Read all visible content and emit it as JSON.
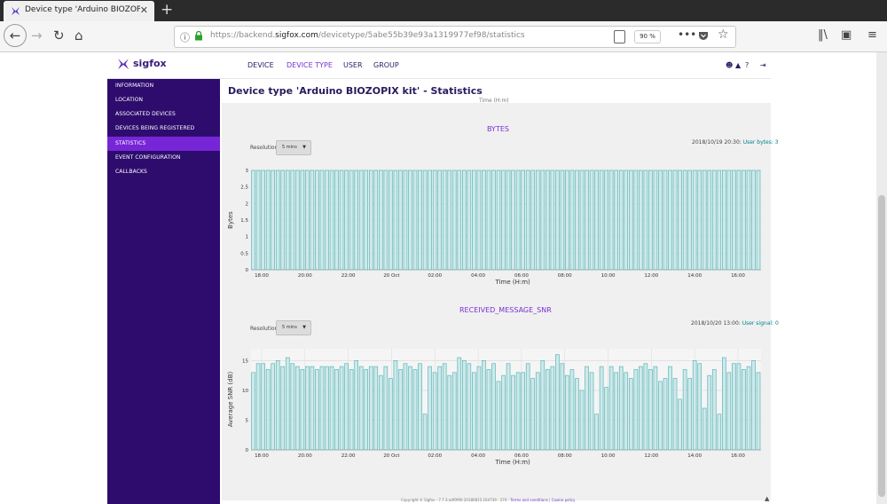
{
  "browser": {
    "tab_title": "Device type 'Arduino BIOZOPIX kit'",
    "url_prefix": "https://backend.",
    "url_domain": "sigfox.com",
    "url_path": "/devicetype/5abe55b39e93a1319977ef98/statistics",
    "zoom": "90 %"
  },
  "header": {
    "logo_text": "sigfox",
    "nav": [
      "DEVICE",
      "DEVICE TYPE",
      "USER",
      "GROUP"
    ],
    "active_nav": "DEVICE TYPE"
  },
  "sidebar": {
    "items": [
      "INFORMATION",
      "LOCATION",
      "ASSOCIATED DEVICES",
      "DEVICES BEING REGISTERED",
      "STATISTICS",
      "EVENT CONFIGURATION",
      "CALLBACKS"
    ],
    "active": "STATISTICS"
  },
  "page_title": "Device type 'Arduino BIOZOPIX kit' - Statistics",
  "cut_label": "Time (H:m)",
  "charts": {
    "bytes": {
      "title": "BYTES",
      "resolution_label": "Resolution",
      "resolution_value": "5 mins",
      "stamp_time": "2018/10/19 20:30: ",
      "stamp_key": "User bytes: ",
      "stamp_value": "3"
    },
    "snr": {
      "title": "RECEIVED_MESSAGE_SNR",
      "resolution_label": "Resolution",
      "resolution_value": "5 mins",
      "stamp_time": "2018/10/20 13:00: ",
      "stamp_key": "User signal: ",
      "stamp_value": "0"
    }
  },
  "footer": {
    "copyright": "Copyright © Sigfox - 7.7.3-a4f0f90-20180815.164739 - 270 - ",
    "terms": "Terms and conditions",
    "sep": " | ",
    "cookies": "Cookie policy"
  },
  "colors": {
    "bar_fill": "#cfe9ea",
    "bar_stroke": "#5bb6b9",
    "accent": "#7b2fd6",
    "sidebar": "#2e0c6e"
  },
  "chart_data": [
    {
      "type": "bar",
      "title": "BYTES",
      "xlabel": "Time (H:m)",
      "ylabel": "Bytes",
      "ylim": [
        0,
        3
      ],
      "yticks": [
        "0",
        "0.5",
        "1",
        "1.5",
        "2",
        "2.5",
        "3"
      ],
      "xticks": [
        "18:00",
        "20:00",
        "22:00",
        "20 Oct",
        "02:00",
        "04:00",
        "06:00",
        "08:00",
        "10:00",
        "12:00",
        "14:00",
        "16:00"
      ],
      "grid": true,
      "values": [
        3,
        3,
        3,
        3,
        3,
        3,
        3,
        3,
        3,
        3,
        3,
        3,
        3,
        3,
        3,
        3,
        3,
        3,
        3,
        3,
        3,
        3,
        3,
        3,
        3,
        3,
        3,
        3,
        3,
        3,
        3,
        3,
        3,
        3,
        3,
        3,
        3,
        3,
        3,
        3,
        3,
        3,
        3,
        3,
        3,
        3,
        3,
        3,
        3,
        3,
        3,
        3,
        3,
        3,
        3,
        3,
        3,
        3,
        3,
        3,
        3,
        3,
        3,
        3,
        3,
        3,
        3,
        3,
        3,
        3,
        3,
        3,
        3,
        3,
        3,
        3,
        3,
        3,
        3,
        3,
        3,
        3,
        3,
        3,
        3,
        3,
        3,
        3,
        3,
        3,
        3,
        3,
        3,
        3,
        3,
        3,
        3,
        3,
        3,
        3,
        3,
        3,
        3,
        3
      ]
    },
    {
      "type": "bar",
      "title": "RECEIVED_MESSAGE_SNR",
      "xlabel": "Time (H:m)",
      "ylabel": "Average SNR (dB)",
      "ylim": [
        0,
        17
      ],
      "yticks": [
        "0",
        "5",
        "10",
        "15"
      ],
      "xticks": [
        "18:00",
        "20:00",
        "22:00",
        "20 Oct",
        "02:00",
        "04:00",
        "06:00",
        "08:00",
        "10:00",
        "12:00",
        "14:00",
        "16:00"
      ],
      "grid": true,
      "values": [
        13,
        14.5,
        14.5,
        13.5,
        14.5,
        15,
        14,
        15.5,
        14.5,
        14,
        13.5,
        14,
        14,
        13.5,
        14,
        14,
        14,
        13.5,
        14,
        14.5,
        13.5,
        15,
        14,
        13.5,
        14,
        14,
        12.5,
        14,
        12,
        15,
        13.5,
        14.5,
        14,
        13.5,
        14.5,
        6,
        14,
        13,
        14,
        14.5,
        12.5,
        13,
        15.5,
        15,
        14.5,
        13,
        14,
        15,
        13.5,
        14.5,
        11.5,
        12.5,
        14.5,
        12.5,
        13,
        13,
        14.5,
        12,
        13,
        15,
        13.5,
        14,
        16,
        14.5,
        12.5,
        13.5,
        12,
        10,
        14,
        13,
        6,
        14,
        10.5,
        14,
        13,
        14,
        13,
        12,
        13.5,
        14,
        14.5,
        13.5,
        14,
        11.5,
        12,
        14,
        12,
        8.5,
        13.5,
        12,
        15,
        14.5,
        7,
        12.5,
        13.5,
        6,
        15.5,
        13,
        14.5,
        14.5,
        13.5,
        14,
        15,
        13
      ]
    }
  ]
}
